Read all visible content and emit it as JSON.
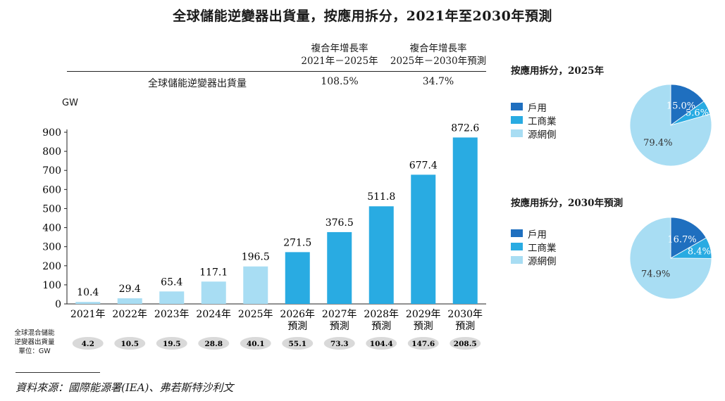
{
  "title": "全球儲能逆變器出貨量，按應用拆分，2021年至2030年預測",
  "cagr": {
    "header1": [
      "複合年增長率",
      "2021年－2025年"
    ],
    "header2": [
      "複合年增長率",
      "2025年－2030年預測"
    ],
    "row_label": "全球儲能逆變器出貨量",
    "value1": "108.5%",
    "value2": "34.7%"
  },
  "unit_label": "GW",
  "mix_row": {
    "label": [
      "全球混合儲能",
      "逆變器出貨量",
      "單位：GW"
    ],
    "values": [
      "4.2",
      "10.5",
      "19.5",
      "28.8",
      "40.1",
      "55.1",
      "73.3",
      "104.4",
      "147.6",
      "208.5"
    ]
  },
  "source": "資料來源：國際能源署(IEA)、弗若斯特沙利文",
  "legend_titles": [
    "按應用拆分，2025年",
    "按應用拆分，2030年預測"
  ],
  "legend_items": [
    "戶用",
    "工商業",
    "源網側"
  ],
  "colors": {
    "historic_bar": "#a8ddf3",
    "forecast_bar": "#29abe2",
    "household": "#1f6fbf",
    "commercial": "#29abe2",
    "grid": "#a8ddf3",
    "pill": "#d9d9d9"
  },
  "chart_data": [
    {
      "type": "bar",
      "title": "全球儲能逆變器出貨量，按應用拆分，2021年至2030年預測",
      "ylabel": "GW",
      "ylim": [
        0,
        900
      ],
      "yticks": [
        0,
        100,
        200,
        300,
        400,
        500,
        600,
        700,
        800,
        900
      ],
      "categories": [
        [
          "2021年"
        ],
        [
          "2022年"
        ],
        [
          "2023年"
        ],
        [
          "2024年"
        ],
        [
          "2025年"
        ],
        [
          "2026年",
          "預測"
        ],
        [
          "2027年",
          "預測"
        ],
        [
          "2028年",
          "預測"
        ],
        [
          "2029年",
          "預測"
        ],
        [
          "2030年",
          "預測"
        ]
      ],
      "values": [
        10.4,
        29.4,
        65.4,
        117.1,
        196.5,
        271.5,
        376.5,
        511.8,
        677.4,
        872.6
      ],
      "value_labels": [
        "10.4",
        "29.4",
        "65.4",
        "117.1",
        "196.5",
        "271.5",
        "376.5",
        "511.8",
        "677.4",
        "872.6"
      ],
      "forecast_from_index": 5
    },
    {
      "type": "pie",
      "title": "按應用拆分，2025年",
      "labels": [
        "戶用",
        "工商業",
        "源網側"
      ],
      "values": [
        15.0,
        5.6,
        79.4
      ],
      "value_labels": [
        "15.0%",
        "5.6%",
        "79.4%"
      ]
    },
    {
      "type": "pie",
      "title": "按應用拆分，2030年預測",
      "labels": [
        "戶用",
        "工商業",
        "源網側"
      ],
      "values": [
        16.7,
        8.4,
        74.9
      ],
      "value_labels": [
        "16.7%",
        "8.4%",
        "74.9%"
      ]
    }
  ]
}
